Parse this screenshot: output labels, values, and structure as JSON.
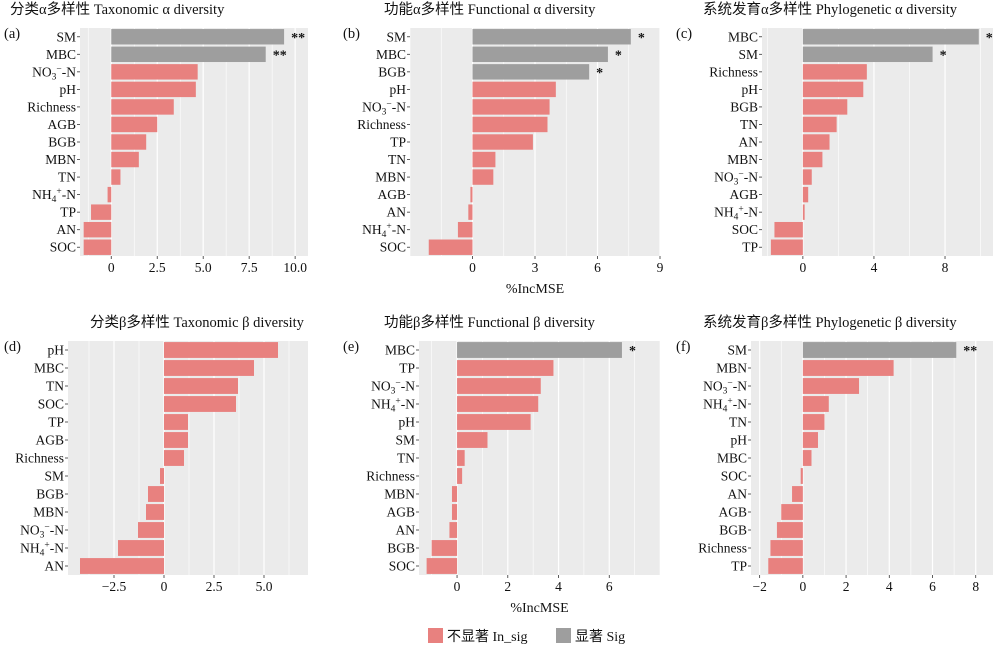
{
  "legend": {
    "insig_label": "不显著 In_sig",
    "sig_label": "显著 Sig",
    "insig_color": "#e8817f",
    "sig_color": "#9e9e9e"
  },
  "panel_bg": "#ebebeb",
  "chart_data": [
    {
      "type": "bar",
      "orientation": "horizontal",
      "panel": "(a)",
      "title": "分类α多样性 Taxonomic α diversity",
      "xlabel": "",
      "xlim": [
        -1.7,
        10.7
      ],
      "xticks": [
        0,
        2.5,
        5,
        7.5,
        10
      ],
      "xtick_labels": [
        "0",
        "2.5",
        "5.0",
        "7.5",
        "10.0"
      ],
      "categories": [
        "SM",
        "MBC",
        "NO₃⁻-N",
        "pH",
        "Richness",
        "AGB",
        "BGB",
        "MBN",
        "TN",
        "NH₄⁺-N",
        "TP",
        "AN",
        "SOC"
      ],
      "values": [
        9.4,
        8.4,
        4.7,
        4.6,
        3.4,
        2.5,
        1.9,
        1.5,
        0.5,
        -0.2,
        -1.1,
        -1.5,
        -1.5
      ],
      "significant": [
        true,
        true,
        false,
        false,
        false,
        false,
        false,
        false,
        false,
        false,
        false,
        false,
        false
      ],
      "annotations": [
        "**",
        "**",
        "",
        "",
        "",
        "",
        "",
        "",
        "",
        "",
        "",
        "",
        ""
      ]
    },
    {
      "type": "bar",
      "orientation": "horizontal",
      "panel": "(b)",
      "title": "功能α多样性 Functional α diversity",
      "xlabel": "%IncMSE",
      "xlim": [
        -3.0,
        9.0
      ],
      "xticks": [
        0,
        3,
        6,
        9
      ],
      "xtick_labels": [
        "0",
        "3",
        "6",
        "9"
      ],
      "categories": [
        "SM",
        "MBC",
        "BGB",
        "pH",
        "NO₃⁻-N",
        "Richness",
        "TP",
        "TN",
        "MBN",
        "AGB",
        "AN",
        "NH₄⁺-N",
        "SOC"
      ],
      "values": [
        7.6,
        6.5,
        5.6,
        4.0,
        3.7,
        3.6,
        2.9,
        1.1,
        1.0,
        -0.1,
        -0.2,
        -0.7,
        -2.1
      ],
      "significant": [
        true,
        true,
        true,
        false,
        false,
        false,
        false,
        false,
        false,
        false,
        false,
        false,
        false
      ],
      "annotations": [
        "*",
        "*",
        "*",
        "",
        "",
        "",
        "",
        "",
        "",
        "",
        "",
        "",
        ""
      ]
    },
    {
      "type": "bar",
      "orientation": "horizontal",
      "panel": "(c)",
      "title": "系统发育α多样性 Phylogenetic α diversity",
      "xlabel": "",
      "xlim": [
        -2.3,
        10.7
      ],
      "xticks": [
        0,
        4,
        8
      ],
      "xtick_labels": [
        "0",
        "4",
        "8"
      ],
      "categories": [
        "MBC",
        "SM",
        "Richness",
        "pH",
        "BGB",
        "TN",
        "AN",
        "MBN",
        "NO₃⁻-N",
        "AGB",
        "NH₄⁺-N",
        "SOC",
        "TP"
      ],
      "values": [
        9.9,
        7.3,
        3.6,
        3.4,
        2.5,
        1.9,
        1.5,
        1.1,
        0.5,
        0.3,
        0.1,
        -1.6,
        -1.8
      ],
      "significant": [
        true,
        true,
        false,
        false,
        false,
        false,
        false,
        false,
        false,
        false,
        false,
        false,
        false
      ],
      "annotations": [
        "*",
        "*",
        "",
        "",
        "",
        "",
        "",
        "",
        "",
        "",
        "",
        "",
        ""
      ]
    },
    {
      "type": "bar",
      "orientation": "horizontal",
      "panel": "(d)",
      "title": "分类β多样性 Taxonomic β diversity",
      "xlabel": "",
      "xlim": [
        -4.8,
        7.2
      ],
      "xticks": [
        -2.5,
        0,
        2.5,
        5
      ],
      "xtick_labels": [
        "-2.5",
        "0",
        "2.5",
        "5.0"
      ],
      "categories": [
        "pH",
        "MBC",
        "TN",
        "SOC",
        "TP",
        "AGB",
        "Richness",
        "SM",
        "BGB",
        "MBN",
        "NO₃⁻-N",
        "NH₄⁺-N",
        "AN"
      ],
      "values": [
        5.7,
        4.5,
        3.7,
        3.6,
        1.2,
        1.2,
        1.0,
        -0.2,
        -0.8,
        -0.9,
        -1.3,
        -2.3,
        -4.2
      ],
      "significant": [
        false,
        false,
        false,
        false,
        false,
        false,
        false,
        false,
        false,
        false,
        false,
        false,
        false
      ],
      "annotations": [
        "",
        "",
        "",
        "",
        "",
        "",
        "",
        "",
        "",
        "",
        "",
        "",
        ""
      ]
    },
    {
      "type": "bar",
      "orientation": "horizontal",
      "panel": "(e)",
      "title": "功能β多样性 Functional β diversity",
      "xlabel": "%IncMSE",
      "xlim": [
        -1.5,
        8.0
      ],
      "xticks": [
        0,
        2,
        4,
        6
      ],
      "xtick_labels": [
        "0",
        "2",
        "4",
        "6"
      ],
      "categories": [
        "MBC",
        "TP",
        "NO₃⁻-N",
        "NH₄⁺-N",
        "pH",
        "SM",
        "TN",
        "Richness",
        "MBN",
        "AGB",
        "AN",
        "BGB",
        "SOC"
      ],
      "values": [
        6.5,
        3.8,
        3.3,
        3.2,
        2.9,
        1.2,
        0.3,
        0.2,
        -0.2,
        -0.2,
        -0.3,
        -1.0,
        -1.2
      ],
      "significant": [
        true,
        false,
        false,
        false,
        false,
        false,
        false,
        false,
        false,
        false,
        false,
        false,
        false
      ],
      "annotations": [
        "*",
        "",
        "",
        "",
        "",
        "",
        "",
        "",
        "",
        "",
        "",
        "",
        ""
      ]
    },
    {
      "type": "bar",
      "orientation": "horizontal",
      "panel": "(f)",
      "title": "系统发育β多样性 Phylogenetic β diversity",
      "xlabel": "",
      "xlim": [
        -2.4,
        8.8
      ],
      "xticks": [
        -2,
        0,
        2,
        4,
        6,
        8
      ],
      "xtick_labels": [
        "-2",
        "0",
        "2",
        "4",
        "6",
        "8"
      ],
      "categories": [
        "SM",
        "MBN",
        "NO₃⁻-N",
        "NH₄⁺-N",
        "TN",
        "pH",
        "MBC",
        "SOC",
        "AN",
        "AGB",
        "BGB",
        "Richness",
        "TP"
      ],
      "values": [
        7.1,
        4.2,
        2.6,
        1.2,
        1.0,
        0.7,
        0.4,
        -0.1,
        -0.5,
        -1.0,
        -1.2,
        -1.5,
        -1.6
      ],
      "significant": [
        true,
        false,
        false,
        false,
        false,
        false,
        false,
        false,
        false,
        false,
        false,
        false,
        false
      ],
      "annotations": [
        "**",
        "",
        "",
        "",
        "",
        "",
        "",
        "",
        "",
        "",
        "",
        "",
        ""
      ]
    }
  ]
}
